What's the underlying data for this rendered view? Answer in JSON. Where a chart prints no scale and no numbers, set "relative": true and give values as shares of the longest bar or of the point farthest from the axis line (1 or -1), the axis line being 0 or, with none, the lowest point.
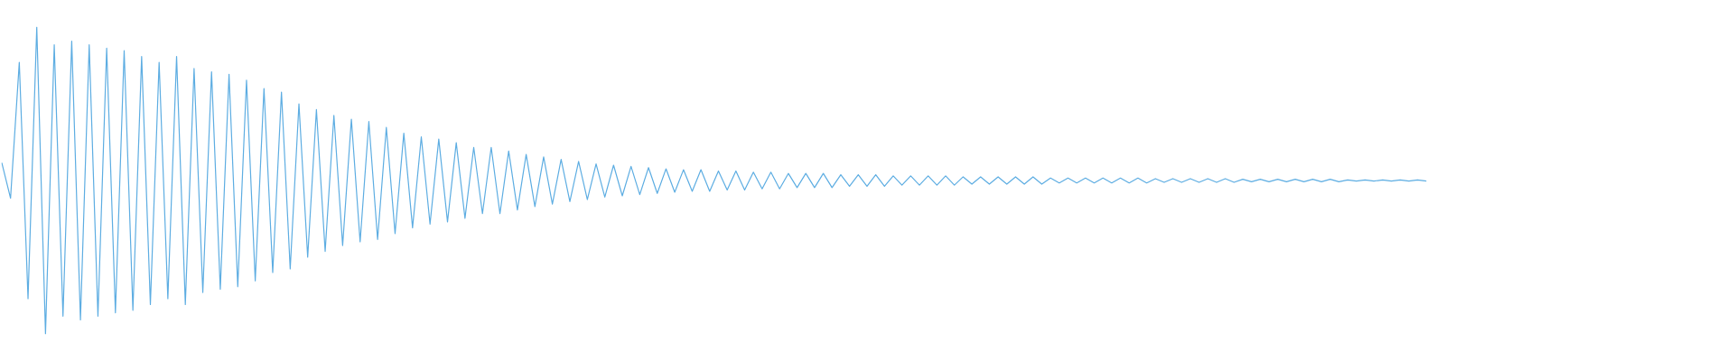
{
  "chart_data": {
    "type": "line",
    "relative": true,
    "marker": "none",
    "line_style": "solid",
    "legend": false,
    "categories": [
      null,
      null,
      null,
      null,
      null,
      null,
      null,
      null,
      null,
      null,
      null,
      null,
      null,
      null,
      null,
      null,
      null,
      null,
      null,
      null,
      null,
      null,
      null,
      null,
      null,
      null,
      null,
      null,
      null,
      null,
      null,
      null,
      null,
      null,
      null,
      null,
      null,
      null,
      null,
      null,
      null,
      null,
      null,
      null,
      null,
      null,
      null,
      null,
      null,
      null,
      null,
      null,
      null,
      null,
      null,
      null,
      null,
      null,
      null,
      null,
      null,
      null,
      null,
      null,
      null,
      null,
      null,
      null,
      null,
      null,
      null,
      null,
      null,
      null,
      null,
      null,
      null,
      null,
      null,
      null,
      null,
      null,
      null,
      null,
      null,
      null,
      null,
      null,
      null,
      null,
      null,
      null,
      null,
      null,
      null,
      null,
      null,
      null,
      null,
      null,
      null,
      null,
      null,
      null,
      null,
      null,
      null,
      null,
      null,
      null,
      null,
      null,
      null,
      null,
      null,
      null,
      null,
      null,
      null,
      null,
      null,
      null,
      null,
      null,
      null,
      null,
      null,
      null,
      null,
      null,
      null,
      null,
      null,
      null,
      null,
      null,
      null,
      null,
      null,
      null,
      null,
      null,
      null,
      null,
      null,
      null,
      null,
      null,
      null,
      null,
      null,
      null,
      null,
      null,
      null,
      null,
      null,
      null,
      null,
      null,
      null,
      null,
      null,
      null,
      null,
      null,
      null,
      null,
      null,
      null,
      null,
      null,
      null,
      null,
      null,
      null,
      null,
      null,
      null,
      null,
      null,
      null,
      null,
      null,
      null,
      null,
      null,
      null,
      null,
      null,
      null,
      null,
      null,
      null,
      null,
      null,
      null,
      null,
      null
    ],
    "series": [
      {
        "color": "#5dade2",
        "values": [
          0.558,
          0.442,
          0.885,
          0.115,
          1,
          0,
          0.942,
          0.058,
          0.954,
          0.046,
          0.942,
          0.058,
          0.931,
          0.069,
          0.923,
          0.077,
          0.904,
          0.096,
          0.885,
          0.115,
          0.904,
          0.096,
          0.865,
          0.135,
          0.854,
          0.146,
          0.846,
          0.154,
          0.827,
          0.173,
          0.8,
          0.2,
          0.788,
          0.212,
          0.75,
          0.25,
          0.731,
          0.269,
          0.712,
          0.288,
          0.7,
          0.3,
          0.692,
          0.308,
          0.673,
          0.327,
          0.654,
          0.346,
          0.642,
          0.358,
          0.635,
          0.365,
          0.623,
          0.377,
          0.608,
          0.392,
          0.608,
          0.392,
          0.596,
          0.404,
          0.585,
          0.415,
          0.577,
          0.423,
          0.569,
          0.431,
          0.562,
          0.438,
          0.554,
          0.446,
          0.55,
          0.45,
          0.546,
          0.454,
          0.542,
          0.458,
          0.538,
          0.462,
          0.535,
          0.465,
          0.535,
          0.465,
          0.531,
          0.469,
          0.531,
          0.469,
          0.527,
          0.473,
          0.527,
          0.473,
          0.523,
          0.477,
          0.523,
          0.477,
          0.523,
          0.477,
          0.519,
          0.481,
          0.519,
          0.481,
          0.519,
          0.481,
          0.515,
          0.485,
          0.515,
          0.485,
          0.515,
          0.485,
          0.515,
          0.485,
          0.512,
          0.488,
          0.512,
          0.488,
          0.512,
          0.488,
          0.512,
          0.488,
          0.512,
          0.488,
          0.508,
          0.492,
          0.508,
          0.492,
          0.508,
          0.492,
          0.508,
          0.492,
          0.508,
          0.492,
          0.508,
          0.492,
          0.506,
          0.494,
          0.506,
          0.494,
          0.506,
          0.494,
          0.506,
          0.494,
          0.506,
          0.494,
          0.504,
          0.496,
          0.504,
          0.496,
          0.504,
          0.496,
          0.504,
          0.496,
          0.504,
          0.496,
          0.504,
          0.496,
          0.502,
          0.498,
          0.502,
          0.498,
          0.502,
          0.498,
          0.502,
          0.498,
          0.502,
          0.498,
          null,
          null,
          null,
          null,
          null,
          null,
          null,
          null,
          null,
          null,
          null,
          null,
          null,
          null,
          null,
          null,
          null,
          null,
          null,
          null,
          null,
          null,
          null,
          null,
          null,
          null,
          null,
          null,
          null,
          null,
          null,
          null,
          null,
          null,
          null
        ]
      }
    ]
  }
}
